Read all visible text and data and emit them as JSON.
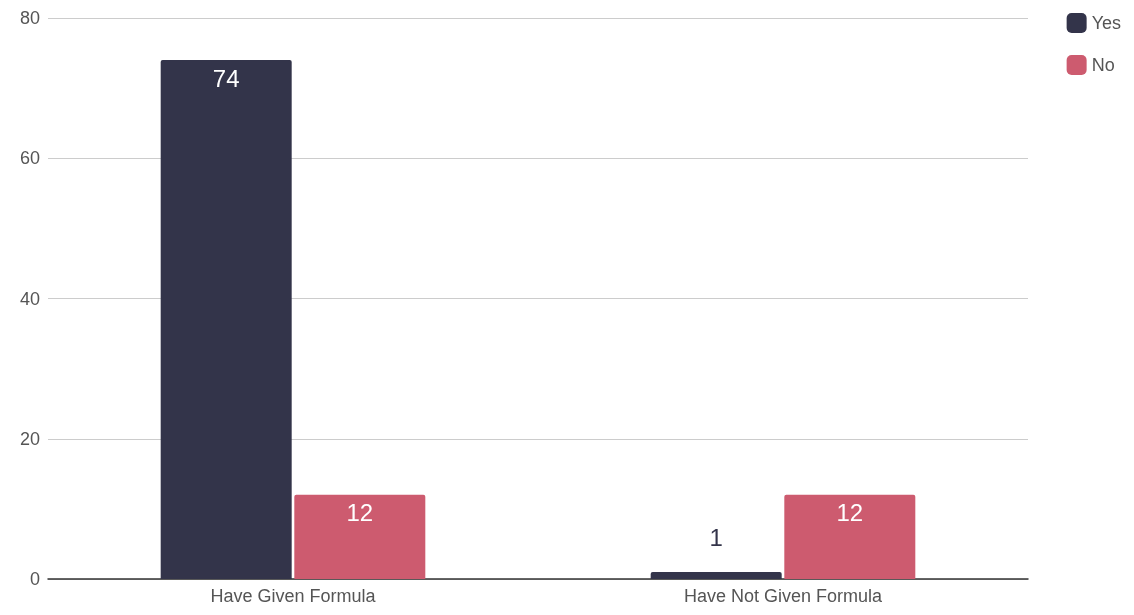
{
  "chart_data": {
    "type": "bar",
    "categories": [
      "Have Given Formula",
      "Have Not Given Formula"
    ],
    "series": [
      {
        "name": "Yes",
        "color": "#33344a",
        "values": [
          74,
          1
        ]
      },
      {
        "name": "No",
        "color": "#cd5b6f",
        "values": [
          12,
          12
        ]
      }
    ],
    "ylim": [
      0,
      80
    ],
    "yticks": [
      0,
      20,
      40,
      60,
      80
    ],
    "grid": "y",
    "legend": "top right",
    "data_labels": true
  }
}
